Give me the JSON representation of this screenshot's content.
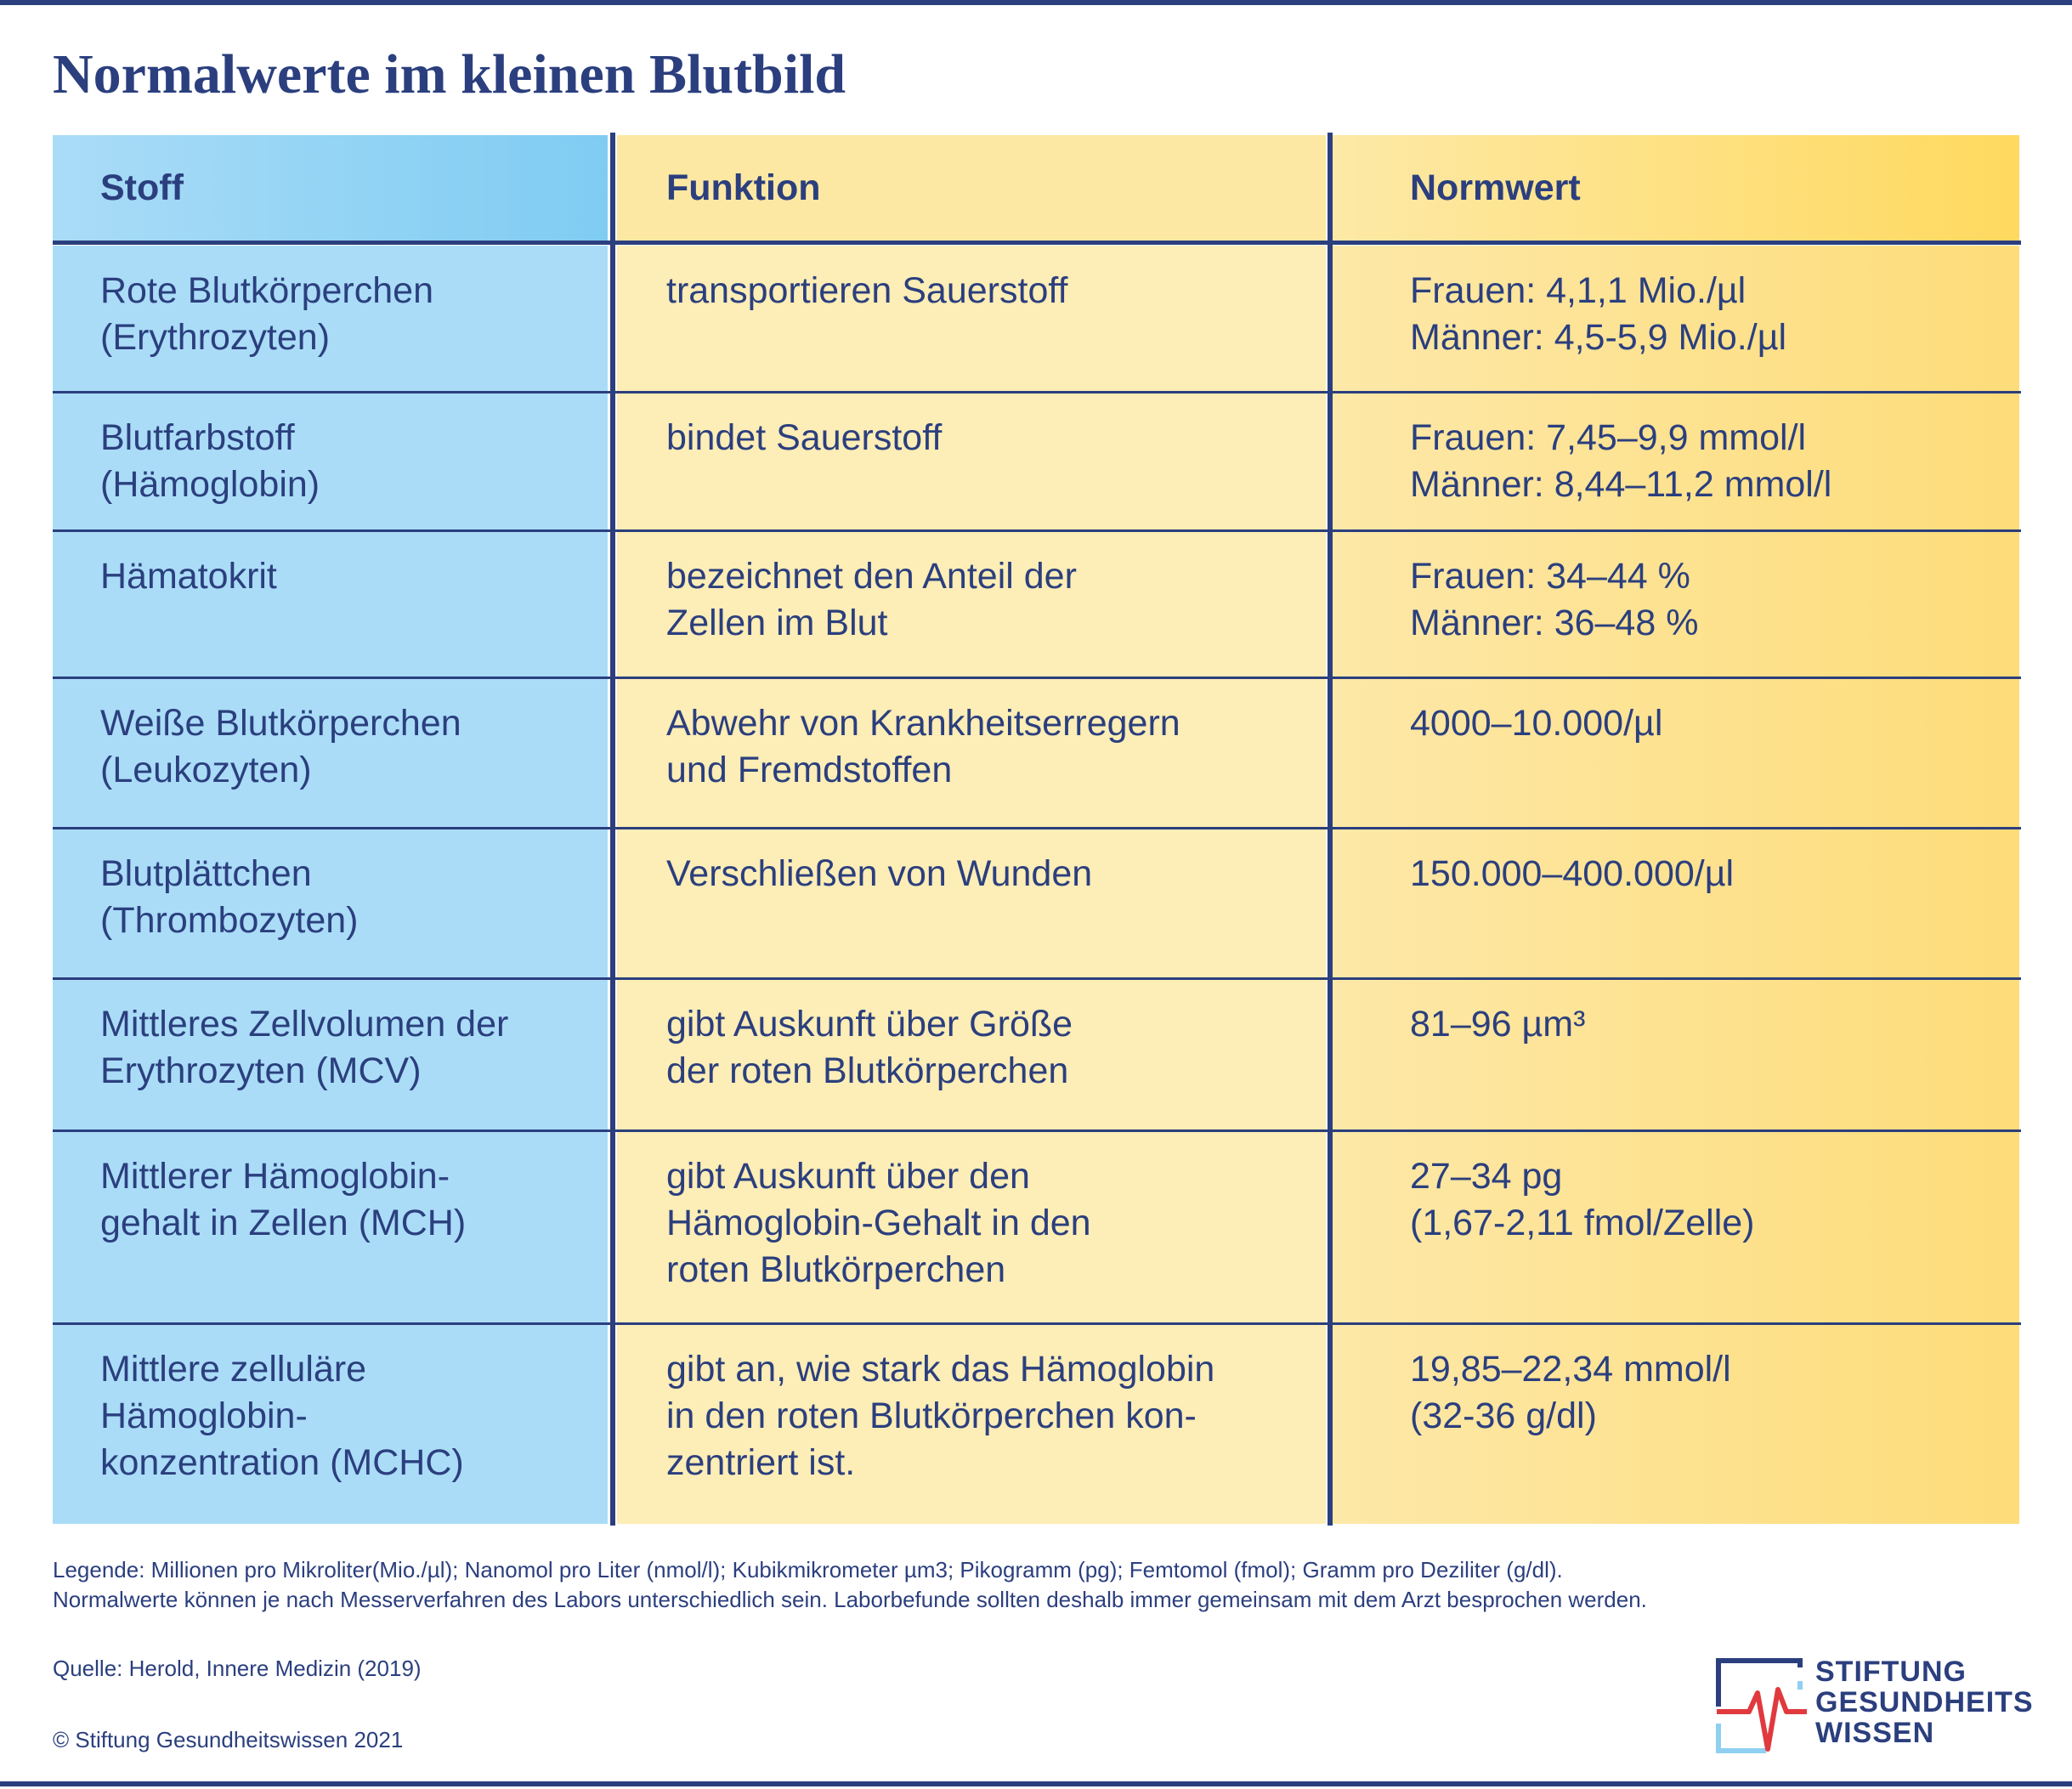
{
  "header": {
    "title": "Normalwerte im kleinen Blutbild"
  },
  "table": {
    "columns": [
      "Stoff",
      "Funktion",
      "Normwert"
    ],
    "rows": [
      [
        [
          "Rote Blutkörperchen",
          "(Erythrozyten)"
        ],
        [
          "transportieren Sauerstoff"
        ],
        [
          "Frauen: 4,1,1 Mio./µl",
          "Männer: 4,5-5,9 Mio./µl"
        ]
      ],
      [
        [
          "Blutfarbstoff",
          "(Hämoglobin)"
        ],
        [
          "bindet Sauerstoff"
        ],
        [
          "Frauen: 7,45–9,9 mmol/l",
          "Männer: 8,44–11,2 mmol/l"
        ]
      ],
      [
        [
          "Hämatokrit"
        ],
        [
          "bezeichnet den Anteil der",
          "Zellen im Blut"
        ],
        [
          "Frauen: 34–44 %",
          "Männer: 36–48 %"
        ]
      ],
      [
        [
          "Weiße Blutkörperchen",
          "(Leukozyten)"
        ],
        [
          "Abwehr von Krankheitserregern",
          "und Fremdstoffen"
        ],
        [
          "4000–10.000/µl"
        ]
      ],
      [
        [
          "Blutplättchen",
          "(Thrombozyten)"
        ],
        [
          "Verschließen von Wunden"
        ],
        [
          "150.000–400.000/µl"
        ]
      ],
      [
        [
          "Mittleres Zellvolumen der",
          "Erythrozyten (MCV)"
        ],
        [
          "gibt Auskunft über Größe",
          "der roten Blutkörperchen"
        ],
        [
          "81–96 µm³"
        ]
      ],
      [
        [
          "Mittlerer Hämoglobin-",
          "gehalt in Zellen (MCH)"
        ],
        [
          "gibt Auskunft über den",
          "Hämoglobin-Gehalt in den",
          "roten Blutkörperchen"
        ],
        [
          "27–34 pg",
          "(1,67-2,11 fmol/Zelle)"
        ]
      ],
      [
        [
          "Mittlere zelluläre",
          "Hämoglobin-",
          "konzentration (MCHC)"
        ],
        [
          "gibt an, wie stark das Hämoglobin",
          "in den roten Blutkörperchen kon-",
          "zentriert ist."
        ],
        [
          "19,85–22,34 mmol/l",
          "(32-36 g/dl)"
        ]
      ]
    ]
  },
  "footer": {
    "legend": [
      "Legende: Millionen pro Mikroliter(Mio./µl); Nanomol pro Liter (nmol/l); Kubikmikrometer µm3; Pikogramm (pg); Femtomol (fmol); Gramm pro Deziliter (g/dl).",
      "Normalwerte können je nach Messerverfahren des Labors unterschiedlich sein. Laborbefunde sollten deshalb immer gemeinsam mit dem Arzt besprochen werden."
    ],
    "source": "Quelle: Herold, Innere Medizin (2019)",
    "copyright": "© Stiftung Gesundheitswissen 2021",
    "logo": [
      "STIFTUNG",
      "GESUNDHEITS",
      "WISSEN"
    ]
  }
}
